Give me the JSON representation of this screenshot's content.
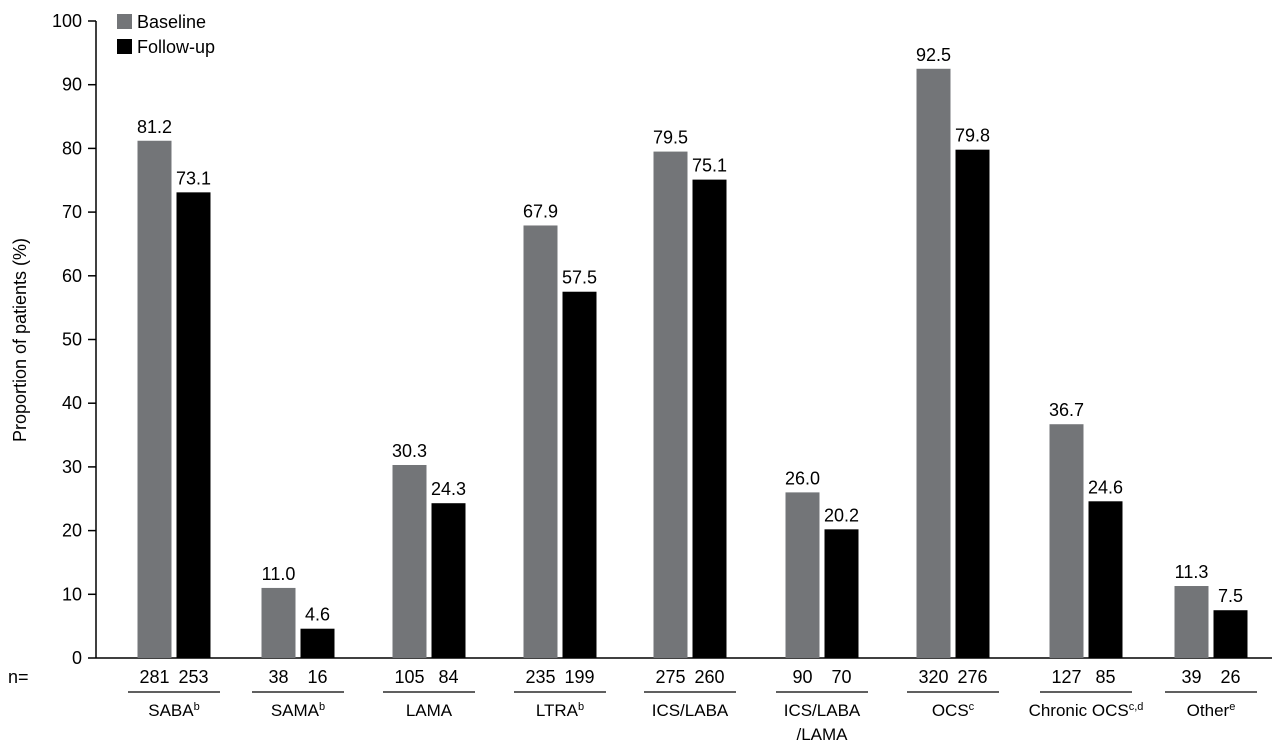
{
  "chart_data": {
    "type": "bar",
    "categories": [
      "SABA",
      "SAMA",
      "LAMA",
      "LTRA",
      "ICS/LABA",
      "ICS/LABA/LAMA",
      "OCS",
      "Chronic OCS",
      "Other"
    ],
    "category_labels": [
      {
        "text": "SABA",
        "sup": "b"
      },
      {
        "text": "SAMA",
        "sup": "b"
      },
      {
        "text": "LAMA",
        "sup": ""
      },
      {
        "text": "LTRA",
        "sup": "b"
      },
      {
        "text": "ICS/LABA",
        "sup": ""
      },
      {
        "text": "ICS/LABA",
        "line2": "/LAMA",
        "sup": ""
      },
      {
        "text": "OCS",
        "sup": "c"
      },
      {
        "text": "Chronic OCS",
        "sup": "c,d"
      },
      {
        "text": "Other",
        "sup": "e"
      }
    ],
    "series": [
      {
        "name": "Baseline",
        "color": "#737578",
        "values": [
          81.2,
          11.0,
          30.3,
          67.9,
          79.5,
          26.0,
          92.5,
          36.7,
          11.3
        ],
        "value_labels": [
          "81.2",
          "11.0",
          "30.3",
          "67.9",
          "79.5",
          "26.0",
          "92.5",
          "36.7",
          "11.3"
        ],
        "n": [
          "281",
          "38",
          "105",
          "235",
          "275",
          "90",
          "320",
          "127",
          "39"
        ]
      },
      {
        "name": "Follow-up",
        "color": "#000000",
        "values": [
          73.1,
          4.6,
          24.3,
          57.5,
          75.1,
          20.2,
          79.8,
          24.6,
          7.5
        ],
        "value_labels": [
          "73.1",
          "4.6",
          "24.3",
          "57.5",
          "75.1",
          "20.2",
          "79.8",
          "24.6",
          "7.5"
        ],
        "n": [
          "253",
          "16",
          "84",
          "199",
          "260",
          "70",
          "276",
          "85",
          "26"
        ]
      }
    ],
    "ylabel": "Proportion of patients (%)",
    "ylim": [
      0,
      100
    ],
    "yticks": [
      "0",
      "10",
      "20",
      "30",
      "40",
      "50",
      "60",
      "70",
      "80",
      "90",
      "100"
    ],
    "n_prefix": "n=",
    "legend_position": "top-left",
    "grid": false
  }
}
